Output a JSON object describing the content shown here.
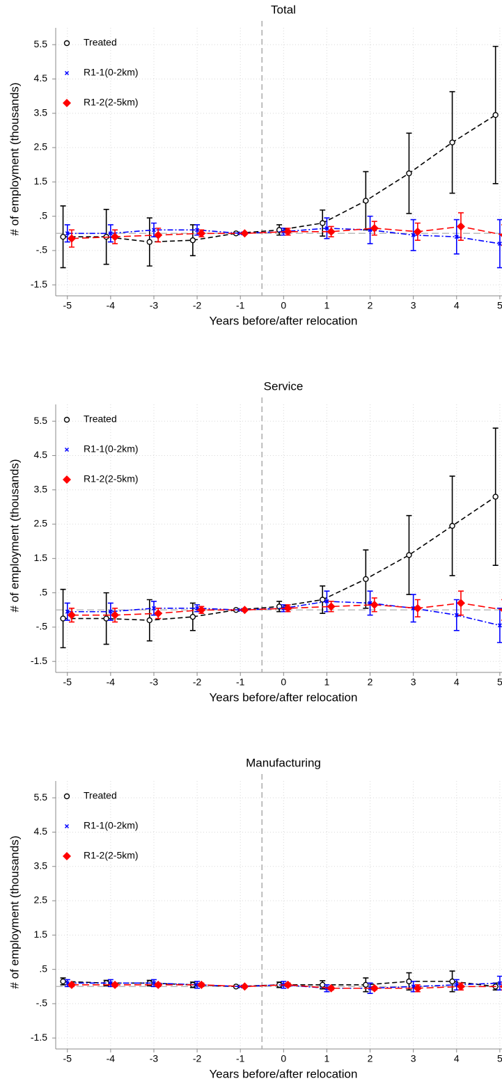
{
  "chart_data": [
    {
      "type": "line",
      "title": "Total",
      "xlabel": "Years before/after relocation",
      "ylabel": "# of employment (thousands)",
      "x": [
        -5,
        -4,
        -3,
        -2,
        -1,
        0,
        1,
        2,
        3,
        4,
        5
      ],
      "xlim": [
        -5.27,
        5.05
      ],
      "ylim": [
        -1.82,
        5.99
      ],
      "xticks": [
        -5,
        -4,
        -3,
        -2,
        -1,
        0,
        1,
        2,
        3,
        4,
        5
      ],
      "yticks": [
        5.5,
        4.5,
        3.5,
        2.5,
        1.5,
        {
          "value": 0.5,
          "label": ".5"
        },
        {
          "value": -0.5,
          "label": "-.5"
        },
        -1.5
      ],
      "grid": true,
      "vline": -0.5,
      "hline": 0,
      "legend": "upper left",
      "series": [
        {
          "name": "Treated",
          "color": "#000000",
          "marker": "circle",
          "dash": "7,4",
          "values": [
            -0.1,
            -0.1,
            -0.25,
            -0.2,
            0,
            0.1,
            0.3,
            0.95,
            1.75,
            2.65,
            3.45
          ],
          "errors": [
            0.9,
            0.8,
            0.7,
            0.45,
            0,
            0.15,
            0.38,
            0.85,
            1.17,
            1.48,
            2.0
          ]
        },
        {
          "name": "R1-1(0-2km)",
          "color": "#0000ff",
          "marker": "x",
          "dash": "8,3,2,3",
          "values": [
            0,
            0,
            0.1,
            0.1,
            0,
            0.05,
            0.15,
            0.1,
            -0.05,
            -0.1,
            -0.3
          ],
          "errors": [
            0.25,
            0.25,
            0.2,
            0.15,
            0,
            0.1,
            0.3,
            0.4,
            0.45,
            0.5,
            0.7
          ]
        },
        {
          "name": "R1-2(2-5km)",
          "color": "#ff0000",
          "marker": "diamond",
          "dash": "10,5",
          "values": [
            -0.15,
            -0.1,
            -0.05,
            0,
            0,
            0.05,
            0.05,
            0.15,
            0.05,
            0.2,
            -0.05
          ],
          "errors": [
            0.25,
            0.2,
            0.2,
            0.1,
            0,
            0.1,
            0.15,
            0.2,
            0.25,
            0.4,
            0.3
          ]
        }
      ]
    },
    {
      "type": "line",
      "title": "Service",
      "xlabel": "Years before/after relocation",
      "ylabel": "# of employment (thousands)",
      "x": [
        -5,
        -4,
        -3,
        -2,
        -1,
        0,
        1,
        2,
        3,
        4,
        5
      ],
      "xlim": [
        -5.27,
        5.05
      ],
      "ylim": [
        -1.82,
        5.99
      ],
      "xticks": [
        -5,
        -4,
        -3,
        -2,
        -1,
        0,
        1,
        2,
        3,
        4,
        5
      ],
      "yticks": [
        5.5,
        4.5,
        3.5,
        2.5,
        1.5,
        {
          "value": 0.5,
          "label": ".5"
        },
        {
          "value": -0.5,
          "label": "-.5"
        },
        -1.5
      ],
      "grid": true,
      "vline": -0.5,
      "hline": 0,
      "legend": "upper left",
      "series": [
        {
          "name": "Treated",
          "color": "#000000",
          "marker": "circle",
          "dash": "7,4",
          "values": [
            -0.25,
            -0.25,
            -0.3,
            -0.2,
            0,
            0.1,
            0.3,
            0.9,
            1.6,
            2.45,
            3.3
          ],
          "errors": [
            0.85,
            0.75,
            0.6,
            0.4,
            0,
            0.15,
            0.4,
            0.85,
            1.15,
            1.45,
            2.0
          ]
        },
        {
          "name": "R1-1(0-2km)",
          "color": "#0000ff",
          "marker": "x",
          "dash": "8,3,2,3",
          "values": [
            -0.05,
            -0.05,
            0.05,
            0.05,
            0,
            0.05,
            0.25,
            0.2,
            0.05,
            -0.15,
            -0.45
          ],
          "errors": [
            0.25,
            0.25,
            0.2,
            0.1,
            0,
            0.1,
            0.3,
            0.35,
            0.4,
            0.45,
            0.5
          ]
        },
        {
          "name": "R1-2(2-5km)",
          "color": "#ff0000",
          "marker": "diamond",
          "dash": "10,5",
          "values": [
            -0.15,
            -0.15,
            -0.1,
            0,
            0,
            0.05,
            0.1,
            0.15,
            0.05,
            0.2,
            0
          ],
          "errors": [
            0.2,
            0.2,
            0.15,
            0.1,
            0,
            0.1,
            0.15,
            0.2,
            0.25,
            0.35,
            0.3
          ]
        }
      ]
    },
    {
      "type": "line",
      "title": "Manufacturing",
      "xlabel": "Years before/after relocation",
      "ylabel": "# of employment (thousands)",
      "x": [
        -5,
        -4,
        -3,
        -2,
        -1,
        0,
        1,
        2,
        3,
        4,
        5
      ],
      "xlim": [
        -5.27,
        5.05
      ],
      "ylim": [
        -1.82,
        5.99
      ],
      "xticks": [
        -5,
        -4,
        -3,
        -2,
        -1,
        0,
        1,
        2,
        3,
        4,
        5
      ],
      "yticks": [
        5.5,
        4.5,
        3.5,
        2.5,
        1.5,
        {
          "value": 0.5,
          "label": ".5"
        },
        {
          "value": -0.5,
          "label": "-.5"
        },
        -1.5
      ],
      "grid": true,
      "vline": -0.5,
      "hline": 0,
      "legend": "upper left",
      "series": [
        {
          "name": "Treated",
          "color": "#000000",
          "marker": "circle",
          "dash": "7,4",
          "values": [
            0.15,
            0.1,
            0.1,
            0.05,
            0,
            0.05,
            0.05,
            0.05,
            0.15,
            0.15,
            0
          ],
          "errors": [
            0.1,
            0.08,
            0.08,
            0.08,
            0,
            0.08,
            0.12,
            0.2,
            0.25,
            0.3,
            0.1
          ]
        },
        {
          "name": "R1-1(0-2km)",
          "color": "#0000ff",
          "marker": "x",
          "dash": "8,3,2,3",
          "values": [
            0.1,
            0.1,
            0.1,
            0.05,
            0,
            0.05,
            -0.05,
            -0.05,
            0,
            0.05,
            0.1
          ],
          "errors": [
            0.1,
            0.1,
            0.1,
            0.1,
            0,
            0.1,
            0.1,
            0.15,
            0.15,
            0.15,
            0.2
          ]
        },
        {
          "name": "R1-2(2-5km)",
          "color": "#ff0000",
          "marker": "diamond",
          "dash": "10,5",
          "values": [
            0.05,
            0.05,
            0.05,
            0.05,
            0,
            0.05,
            -0.05,
            -0.05,
            -0.05,
            0,
            0
          ],
          "errors": [
            0.05,
            0.05,
            0.05,
            0.05,
            0,
            0.05,
            0.05,
            0.05,
            0.1,
            0.1,
            0.1
          ]
        }
      ]
    }
  ]
}
